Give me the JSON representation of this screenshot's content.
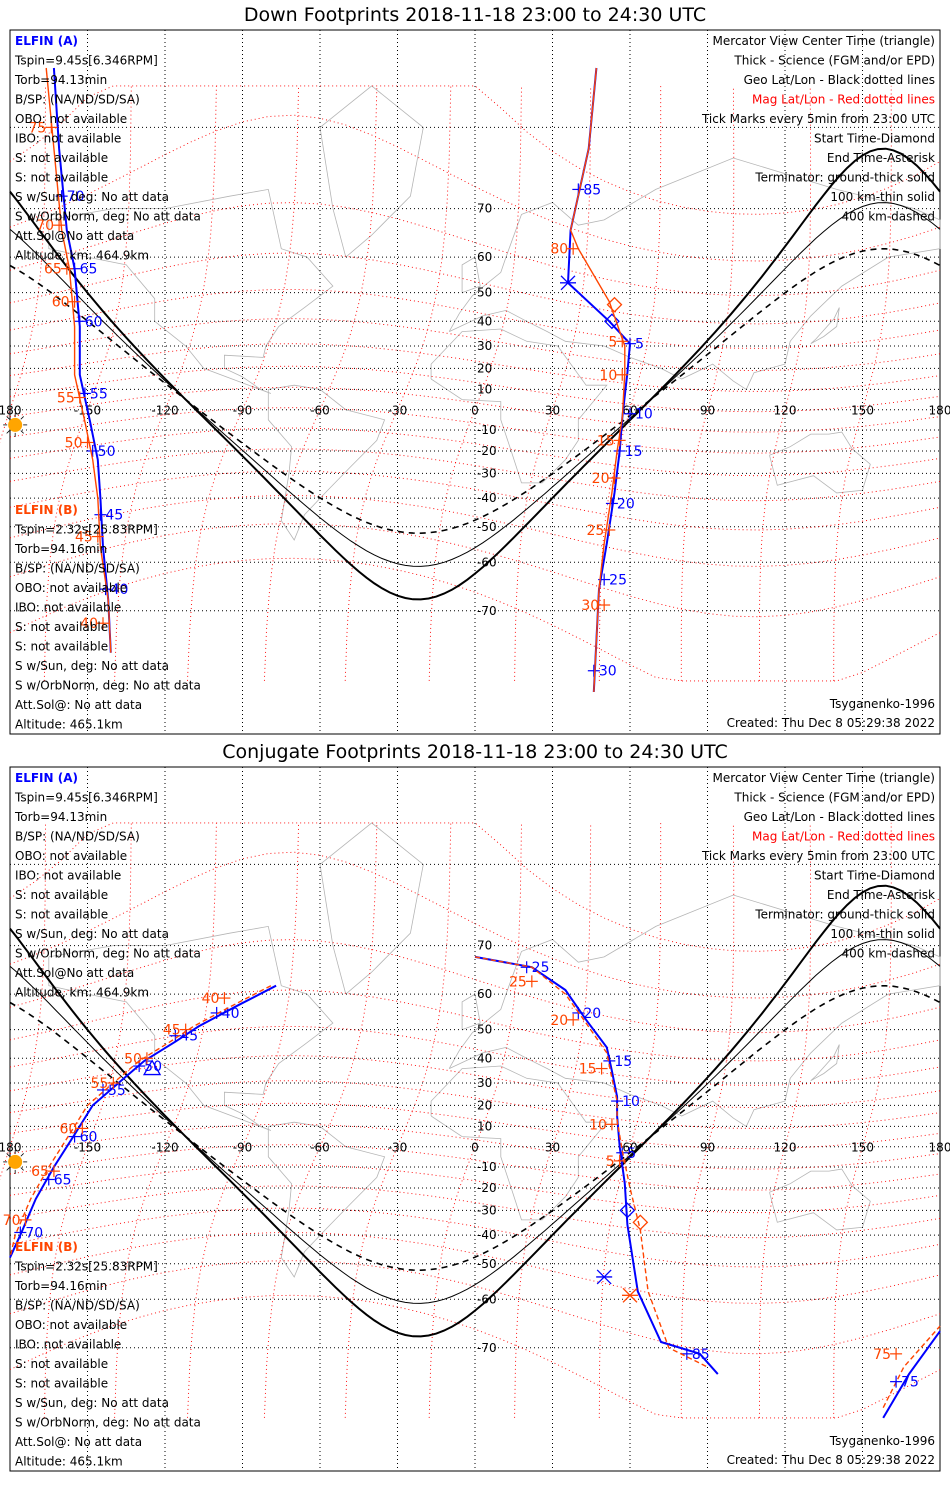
{
  "chart_data": [
    {
      "type": "scatter",
      "title": "Down Footprints 2018-11-18 23:00 to 24:30 UTC",
      "xlabel": "",
      "ylabel": "",
      "projection": "Mercator",
      "xlim": [
        -180,
        180
      ],
      "ylim": [
        -80,
        84
      ],
      "x_ticks": [
        "180",
        "-150",
        "-120",
        "-90",
        "-60",
        "-30",
        "0",
        "30",
        "60",
        "90",
        "120",
        "150",
        "180"
      ],
      "lat_labels": [
        "70",
        "60",
        "50",
        "40",
        "30",
        "20",
        "10",
        "-10",
        "-20",
        "-30",
        "-40",
        "-50",
        "-60",
        "-70"
      ],
      "info_a": [
        "ELFIN (A)",
        "Tspin=9.45s[6.346RPM]",
        "Torb=94.13min",
        "B/SP: (NA/ND/SD/SA)",
        "OBO: not available",
        "IBO: not available",
        "S: not available",
        "S: not available",
        "S w/Sun, deg: No att data",
        "S w/OrbNorm, deg: No att data",
        "Att.Sol@No att data",
        "Altitude, km: 464.9km"
      ],
      "info_b": [
        "ELFIN (B)",
        "Tspin=2.32s[25.83RPM]",
        "Torb=94.16min",
        "B/SP: (NA/ND/SD/SA)",
        "OBO: not available",
        "IBO: not available",
        "S: not available",
        "S: not available",
        "S w/Sun, deg: No att data",
        "S w/OrbNorm, deg: No att data",
        "Att.Sol@: No att data",
        "Altitude: 465.1km"
      ],
      "legend": [
        "Mercator View Center Time (triangle)",
        "Thick - Science (FGM and/or EPD)",
        "Geo Lat/Lon - Black dotted lines",
        "Mag Lat/Lon - Red dotted lines",
        "Tick Marks every 5min from 23:00 UTC",
        "Start Time-Diamond",
        "End Time-Asterisk",
        "Terminator: ground-thick solid",
        "100 km-thin solid",
        "400 km-dashed"
      ],
      "model": "Tsyganenko-1996",
      "created": "Created: Thu Dec  8 05:29:38 2022",
      "series": [
        {
          "name": "ELFIN (A)",
          "color": "#0000ff",
          "track": [
            [
              -163,
              84
            ],
            [
              -161,
              78
            ],
            [
              -158,
              66
            ],
            [
              -155,
              57
            ],
            [
              -153,
              38
            ],
            [
              -153,
              17
            ],
            [
              -149,
              -6
            ],
            [
              -146,
              -24
            ],
            [
              -145,
              -40
            ],
            [
              -144,
              -56
            ],
            [
              -142,
              -68
            ],
            [
              -141,
              -76
            ]
          ],
          "ticks": [
            {
              "lon": -160,
              "lat": 72,
              "label": "70"
            },
            {
              "lon": -155,
              "lat": 57,
              "label": "65"
            },
            {
              "lon": -153,
              "lat": 40,
              "label": "60"
            },
            {
              "lon": -151,
              "lat": 8,
              "label": "55"
            },
            {
              "lon": -148,
              "lat": -20,
              "label": "50"
            },
            {
              "lon": -145,
              "lat": -46,
              "label": "45"
            },
            {
              "lon": -143,
              "lat": -66,
              "label": "40"
            }
          ]
        },
        {
          "name": "ELFIN (B)",
          "color": "#ff4500",
          "track": [
            [
              -166,
              84
            ],
            [
              -163,
              78
            ],
            [
              -160,
              66
            ],
            [
              -157,
              57
            ],
            [
              -155,
              38
            ],
            [
              -155,
              17
            ],
            [
              -151,
              -6
            ],
            [
              -148,
              -24
            ],
            [
              -146,
              -40
            ],
            [
              -145,
              -56
            ],
            [
              -142,
              -68
            ],
            [
              -141,
              -76
            ]
          ],
          "ticks": [
            {
              "lon": -164,
              "lat": 80,
              "label": "75"
            },
            {
              "lon": -161,
              "lat": 67,
              "label": "70"
            },
            {
              "lon": -158,
              "lat": 57,
              "label": "65"
            },
            {
              "lon": -155,
              "lat": 47,
              "label": "60"
            },
            {
              "lon": -153,
              "lat": 6,
              "label": "55"
            },
            {
              "lon": -150,
              "lat": -16,
              "label": "50"
            },
            {
              "lon": -146,
              "lat": -53,
              "label": "45"
            },
            {
              "lon": -144,
              "lat": -72,
              "label": "40"
            }
          ]
        },
        {
          "name": "ELFIN (A) 2",
          "color": "#0000ff",
          "track": [
            [
              47,
              84
            ],
            [
              44,
              78
            ],
            [
              37,
              66
            ],
            [
              36,
              53
            ],
            [
              52,
              40
            ],
            [
              60,
              31
            ],
            [
              59,
              18
            ],
            [
              57,
              -4
            ],
            [
              56,
              -20
            ],
            [
              54,
              -38
            ],
            [
              51,
              -55
            ],
            [
              48,
              -66
            ],
            [
              46,
              -80
            ]
          ],
          "ticks": [
            {
              "lon": 40,
              "lat": 73,
              "label": "85"
            },
            {
              "lon": 60,
              "lat": 31,
              "label": "5"
            },
            {
              "lon": 60,
              "lat": -2,
              "label": "10"
            },
            {
              "lon": 56,
              "lat": -20,
              "label": "15"
            },
            {
              "lon": 53,
              "lat": -42,
              "label": "20"
            },
            {
              "lon": 50,
              "lat": -64,
              "label": "25"
            },
            {
              "lon": 46,
              "lat": -78,
              "label": "30"
            }
          ],
          "start": {
            "lon": 53,
            "lat": 40
          },
          "end": {
            "lon": 36,
            "lat": 53
          }
        },
        {
          "name": "ELFIN (B) 2",
          "color": "#ff4500",
          "track": [
            [
              47,
              84
            ],
            [
              44,
              78
            ],
            [
              37,
              66
            ],
            [
              40,
              62
            ],
            [
              52,
              47
            ],
            [
              58,
              30
            ],
            [
              58,
              18
            ],
            [
              57,
              -4
            ],
            [
              55,
              -20
            ],
            [
              53,
              -38
            ],
            [
              50,
              -55
            ],
            [
              48,
              -66
            ],
            [
              46,
              -80
            ]
          ],
          "ticks": [
            {
              "lon": 38,
              "lat": 62,
              "label": "80"
            },
            {
              "lon": 57,
              "lat": 32,
              "label": "5"
            },
            {
              "lon": 57,
              "lat": 17,
              "label": "10"
            },
            {
              "lon": 56,
              "lat": -15,
              "label": "15"
            },
            {
              "lon": 54,
              "lat": -32,
              "label": "20"
            },
            {
              "lon": 52,
              "lat": -51,
              "label": "25"
            },
            {
              "lon": 50,
              "lat": -69,
              "label": "30"
            }
          ],
          "start": {
            "lon": 54,
            "lat": 46
          }
        }
      ]
    },
    {
      "type": "scatter",
      "title": "Conjugate Footprints 2018-11-18 23:00 to 24:30 UTC",
      "xlabel": "",
      "ylabel": "",
      "projection": "Mercator",
      "xlim": [
        -180,
        180
      ],
      "ylim": [
        -80,
        84
      ],
      "x_ticks": [
        "180",
        "-150",
        "-120",
        "-90",
        "-60",
        "-30",
        "0",
        "30",
        "60",
        "90",
        "120",
        "150",
        "180"
      ],
      "lat_labels": [
        "70",
        "60",
        "50",
        "40",
        "30",
        "20",
        "10",
        "-10",
        "-20",
        "-30",
        "-40",
        "-50",
        "-60",
        "-70"
      ],
      "info_a": [
        "ELFIN (A)",
        "Tspin=9.45s[6.346RPM]",
        "Torb=94.13min",
        "B/SP: (NA/ND/SD/SA)",
        "OBO: not available",
        "IBO: not available",
        "S: not available",
        "S: not available",
        "S w/Sun, deg: No att data",
        "S w/OrbNorm, deg: No att data",
        "Att.Sol@No att data",
        "Altitude, km: 464.9km"
      ],
      "info_b": [
        "ELFIN (B)",
        "Tspin=2.32s[25.83RPM]",
        "Torb=94.16min",
        "B/SP: (NA/ND/SD/SA)",
        "OBO: not available",
        "IBO: not available",
        "S: not available",
        "S: not available",
        "S w/Sun, deg: No att data",
        "S w/OrbNorm, deg: No att data",
        "Att.Sol@: No att data",
        "Altitude: 465.1km"
      ],
      "legend": [
        "Mercator View Center Time (triangle)",
        "Thick - Science (FGM and/or EPD)",
        "Geo Lat/Lon - Black dotted lines",
        "Mag Lat/Lon - Red dotted lines",
        "Tick Marks every 5min from 23:00 UTC",
        "Start Time-Diamond",
        "End Time-Asterisk",
        "Terminator: ground-thick solid",
        "100 km-thin solid",
        "400 km-dashed"
      ],
      "model": "Tsyganenko-1996",
      "created": "Created: Thu Dec  8 05:29:38 2022",
      "series": [
        {
          "name": "ELFIN (A)",
          "color": "#0000ff",
          "track": [
            [
              -77,
              62
            ],
            [
              -92,
              57
            ],
            [
              -107,
              51
            ],
            [
              -116,
              46
            ],
            [
              -128,
              39
            ],
            [
              -138,
              30
            ],
            [
              -148,
              20
            ],
            [
              -155,
              6
            ],
            [
              -163,
              -10
            ],
            [
              -170,
              -25
            ],
            [
              -176,
              -40
            ],
            [
              -180,
              -48
            ]
          ],
          "ticks": [
            {
              "lon": -100,
              "lat": 55,
              "label": "40"
            },
            {
              "lon": -116,
              "lat": 48,
              "label": "45"
            },
            {
              "lon": -130,
              "lat": 37,
              "label": "50"
            },
            {
              "lon": -144,
              "lat": 27,
              "label": "55"
            },
            {
              "lon": -155,
              "lat": 5,
              "label": "60"
            },
            {
              "lon": -165,
              "lat": -16,
              "label": "65"
            },
            {
              "lon": -176,
              "lat": -39,
              "label": "70"
            }
          ],
          "center": {
            "lon": -125,
            "lat": 36
          }
        },
        {
          "name": "ELFIN (B)",
          "color": "#ff4500",
          "track": [
            [
              -79,
              62
            ],
            [
              -94,
              57
            ],
            [
              -109,
              51
            ],
            [
              -118,
              46
            ],
            [
              -130,
              39
            ],
            [
              -140,
              30
            ],
            [
              -150,
              20
            ],
            [
              -157,
              6
            ],
            [
              -165,
              -10
            ],
            [
              -172,
              -25
            ],
            [
              -178,
              -40
            ],
            [
              -180,
              -48
            ]
          ],
          "ticks": [
            {
              "lon": -97,
              "lat": 59,
              "label": "40"
            },
            {
              "lon": -112,
              "lat": 50,
              "label": "45"
            },
            {
              "lon": -127,
              "lat": 40,
              "label": "50"
            },
            {
              "lon": -140,
              "lat": 30,
              "label": "55"
            },
            {
              "lon": -152,
              "lat": 9,
              "label": "60"
            },
            {
              "lon": -163,
              "lat": -12,
              "label": "65"
            },
            {
              "lon": -174,
              "lat": -34,
              "label": "70"
            }
          ]
        },
        {
          "name": "ELFIN (A) 2",
          "color": "#0000ff",
          "track": [
            [
              0,
              68
            ],
            [
              22,
              66
            ],
            [
              35,
              61
            ],
            [
              43,
              53
            ],
            [
              51,
              44
            ],
            [
              53,
              35
            ],
            [
              55,
              24
            ],
            [
              55,
              15
            ],
            [
              56,
              0
            ],
            [
              58,
              -18
            ],
            [
              59,
              -36
            ],
            [
              63,
              -58
            ],
            [
              72,
              -69
            ],
            [
              87,
              -71
            ],
            [
              94,
              -74
            ]
          ],
          "ticks": [
            {
              "lon": 20,
              "lat": 66,
              "label": "25"
            },
            {
              "lon": 40,
              "lat": 55,
              "label": "20"
            },
            {
              "lon": 52,
              "lat": 39,
              "label": "15"
            },
            {
              "lon": 55,
              "lat": 22,
              "label": "10"
            },
            {
              "lon": 57,
              "lat": -3,
              "label": "5"
            },
            {
              "lon": 82,
              "lat": -71,
              "label": "85"
            }
          ],
          "start": {
            "lon": 59,
            "lat": -30
          },
          "end": {
            "lon": 50,
            "lat": -54
          }
        },
        {
          "name": "ELFIN (B) 2",
          "color": "#ff4500",
          "track": [
            [
              0,
              68
            ],
            [
              22,
              66
            ],
            [
              35,
              60
            ],
            [
              43,
              52
            ],
            [
              51,
              42
            ],
            [
              53,
              32
            ],
            [
              55,
              22
            ],
            [
              55,
              13
            ],
            [
              57,
              -2
            ],
            [
              60,
              -20
            ],
            [
              64,
              -38
            ],
            [
              67,
              -58
            ],
            [
              75,
              -70
            ],
            [
              90,
              -73
            ]
          ],
          "ticks": [
            {
              "lon": 22,
              "lat": 63,
              "label": "25"
            },
            {
              "lon": 38,
              "lat": 53,
              "label": "20"
            },
            {
              "lon": 49,
              "lat": 36,
              "label": "15"
            },
            {
              "lon": 53,
              "lat": 11,
              "label": "10"
            },
            {
              "lon": 56,
              "lat": -7,
              "label": "5"
            }
          ],
          "start": {
            "lon": 64,
            "lat": -35
          },
          "end": {
            "lon": 60,
            "lat": -59
          }
        },
        {
          "name": "ELFIN (B) 3",
          "color": "#ff4500",
          "track": [
            [
              158,
              -78
            ],
            [
              166,
              -73
            ],
            [
              180,
              -66
            ]
          ],
          "ticks": [
            {
              "lon": 163,
              "lat": -71,
              "label": "75"
            }
          ]
        },
        {
          "name": "ELFIN (A) 3",
          "color": "#0000ff",
          "track": [
            [
              158,
              -79
            ],
            [
              168,
              -74
            ],
            [
              180,
              -67
            ]
          ],
          "ticks": [
            {
              "lon": 163,
              "lat": -75,
              "label": "75"
            }
          ]
        }
      ]
    }
  ]
}
